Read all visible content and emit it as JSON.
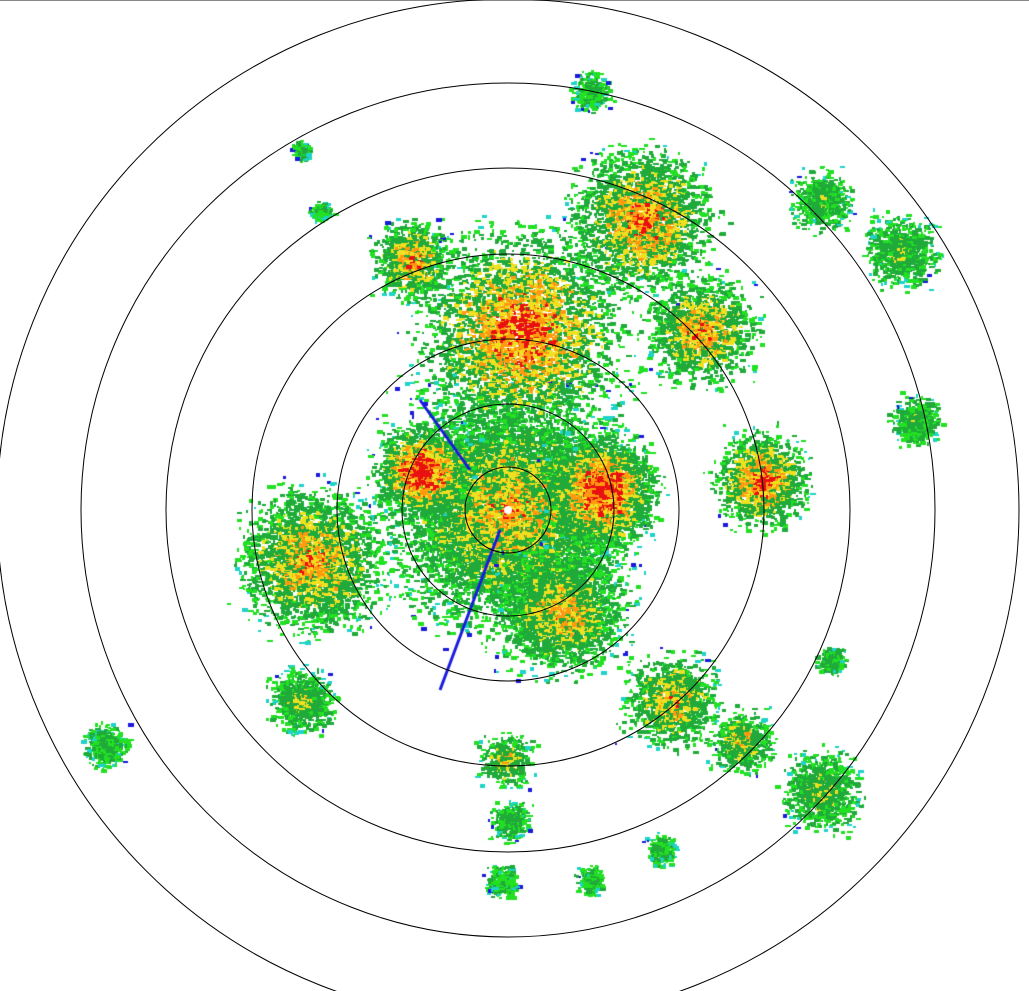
{
  "radar": {
    "palette": {
      "weak_blue": "#1a1adc",
      "cyan": "#1fd3c8",
      "light_green": "#22e022",
      "green": "#1faa3a",
      "yellow": "#f0e020",
      "orange": "#ff9a10",
      "red": "#e81010"
    },
    "range_ring_color": "#000000",
    "range_ring_count": 7
  }
}
